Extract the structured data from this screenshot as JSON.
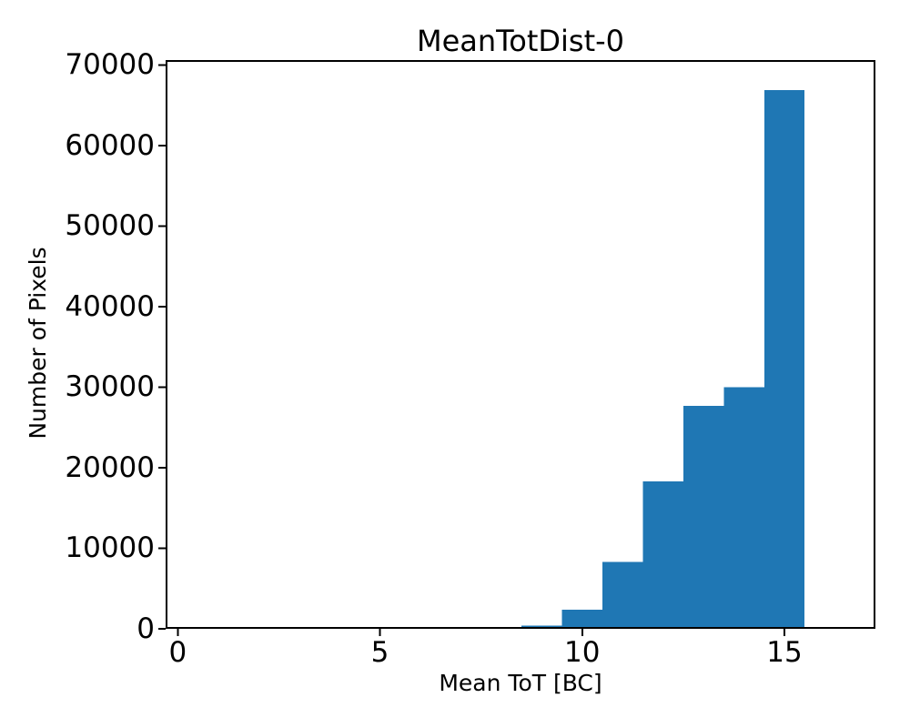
{
  "figure": {
    "background_color": "#ffffff",
    "axis_color": "#000000",
    "text_color": "#000000"
  },
  "chart_data": {
    "type": "bar",
    "subtype": "histogram",
    "title": "MeanTotDist-0",
    "xlabel": "Mean ToT [BC]",
    "ylabel": "Number of Pixels",
    "bar_color": "#1f77b4",
    "grid": false,
    "legend": null,
    "bin_edges": [
      7.5,
      8.5,
      9.5,
      10.5,
      11.5,
      12.5,
      13.5,
      14.5,
      15.5
    ],
    "counts": [
      150,
      400,
      2400,
      8300,
      18300,
      27700,
      30000,
      66900
    ],
    "xlim": [
      -0.3,
      17.25
    ],
    "ylim": [
      0,
      70600
    ],
    "xticks": [
      0,
      5,
      10,
      15
    ],
    "yticks": [
      0,
      10000,
      20000,
      30000,
      40000,
      50000,
      60000,
      70000
    ],
    "xtick_labels": [
      "0",
      "5",
      "10",
      "15"
    ],
    "ytick_labels": [
      "0",
      "10000",
      "20000",
      "30000",
      "40000",
      "50000",
      "60000",
      "70000"
    ]
  }
}
